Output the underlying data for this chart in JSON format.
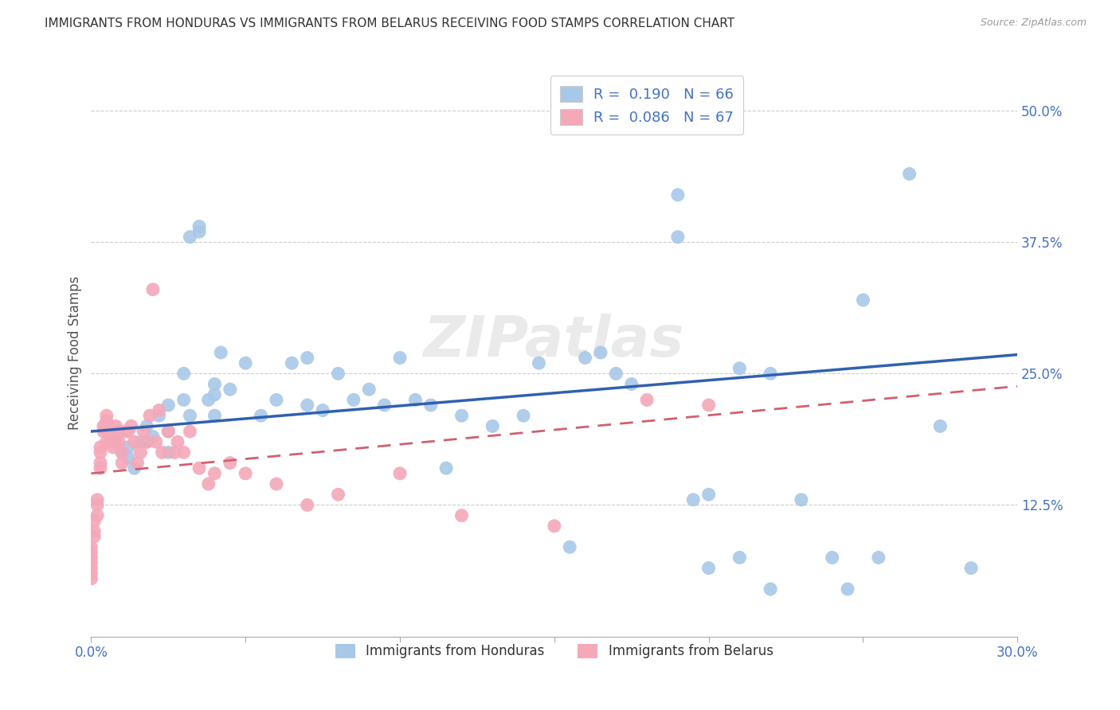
{
  "title": "IMMIGRANTS FROM HONDURAS VS IMMIGRANTS FROM BELARUS RECEIVING FOOD STAMPS CORRELATION CHART",
  "source": "Source: ZipAtlas.com",
  "ylabel": "Receiving Food Stamps",
  "right_yticks": [
    "50.0%",
    "37.5%",
    "25.0%",
    "12.5%"
  ],
  "right_ytick_vals": [
    0.5,
    0.375,
    0.25,
    0.125
  ],
  "xlim": [
    0.0,
    0.3
  ],
  "ylim": [
    0.0,
    0.54
  ],
  "color_honduras": "#a8c8e8",
  "color_belarus": "#f4a8b8",
  "color_line_honduras": "#3060b0",
  "color_line_belarus": "#d06070",
  "background_color": "#ffffff",
  "title_fontsize": 11,
  "grid_vals": [
    0.125,
    0.25,
    0.375,
    0.5
  ],
  "regression_honduras_x0": 0.0,
  "regression_honduras_y0": 0.195,
  "regression_honduras_x1": 0.3,
  "regression_honduras_y1": 0.268,
  "regression_belarus_x0": 0.0,
  "regression_belarus_y0": 0.155,
  "regression_belarus_x1": 0.3,
  "regression_belarus_y1": 0.238,
  "honduras_x": [
    0.008,
    0.01,
    0.012,
    0.012,
    0.014,
    0.016,
    0.018,
    0.018,
    0.02,
    0.022,
    0.025,
    0.025,
    0.025,
    0.03,
    0.03,
    0.032,
    0.032,
    0.035,
    0.035,
    0.038,
    0.04,
    0.04,
    0.04,
    0.042,
    0.045,
    0.05,
    0.055,
    0.06,
    0.065,
    0.07,
    0.07,
    0.075,
    0.08,
    0.085,
    0.09,
    0.095,
    0.1,
    0.105,
    0.11,
    0.115,
    0.12,
    0.13,
    0.14,
    0.145,
    0.155,
    0.16,
    0.165,
    0.17,
    0.175,
    0.19,
    0.195,
    0.2,
    0.21,
    0.22,
    0.23,
    0.24,
    0.25,
    0.265,
    0.275,
    0.285,
    0.19,
    0.2,
    0.21,
    0.22,
    0.245,
    0.255
  ],
  "honduras_y": [
    0.185,
    0.175,
    0.18,
    0.17,
    0.16,
    0.185,
    0.2,
    0.185,
    0.19,
    0.21,
    0.22,
    0.195,
    0.175,
    0.25,
    0.225,
    0.21,
    0.38,
    0.385,
    0.39,
    0.225,
    0.23,
    0.21,
    0.24,
    0.27,
    0.235,
    0.26,
    0.21,
    0.225,
    0.26,
    0.22,
    0.265,
    0.215,
    0.25,
    0.225,
    0.235,
    0.22,
    0.265,
    0.225,
    0.22,
    0.16,
    0.21,
    0.2,
    0.21,
    0.26,
    0.085,
    0.265,
    0.27,
    0.25,
    0.24,
    0.42,
    0.13,
    0.135,
    0.255,
    0.25,
    0.13,
    0.075,
    0.32,
    0.44,
    0.2,
    0.065,
    0.38,
    0.065,
    0.075,
    0.045,
    0.045,
    0.075
  ],
  "belarus_x": [
    0.0,
    0.0,
    0.0,
    0.0,
    0.0,
    0.0,
    0.0,
    0.001,
    0.001,
    0.001,
    0.002,
    0.002,
    0.002,
    0.003,
    0.003,
    0.003,
    0.003,
    0.004,
    0.004,
    0.005,
    0.005,
    0.005,
    0.005,
    0.006,
    0.006,
    0.006,
    0.007,
    0.007,
    0.007,
    0.008,
    0.008,
    0.008,
    0.009,
    0.009,
    0.01,
    0.01,
    0.011,
    0.012,
    0.013,
    0.014,
    0.015,
    0.016,
    0.017,
    0.018,
    0.019,
    0.02,
    0.021,
    0.022,
    0.023,
    0.025,
    0.027,
    0.028,
    0.03,
    0.032,
    0.035,
    0.038,
    0.04,
    0.045,
    0.05,
    0.06,
    0.07,
    0.08,
    0.1,
    0.12,
    0.15,
    0.18,
    0.2
  ],
  "belarus_y": [
    0.085,
    0.08,
    0.075,
    0.07,
    0.065,
    0.06,
    0.055,
    0.095,
    0.1,
    0.11,
    0.115,
    0.125,
    0.13,
    0.18,
    0.175,
    0.165,
    0.16,
    0.2,
    0.195,
    0.21,
    0.205,
    0.195,
    0.185,
    0.195,
    0.19,
    0.185,
    0.195,
    0.19,
    0.18,
    0.2,
    0.195,
    0.185,
    0.195,
    0.185,
    0.175,
    0.165,
    0.195,
    0.195,
    0.2,
    0.185,
    0.165,
    0.175,
    0.195,
    0.185,
    0.21,
    0.33,
    0.185,
    0.215,
    0.175,
    0.195,
    0.175,
    0.185,
    0.175,
    0.195,
    0.16,
    0.145,
    0.155,
    0.165,
    0.155,
    0.145,
    0.125,
    0.135,
    0.155,
    0.115,
    0.105,
    0.225,
    0.22
  ]
}
